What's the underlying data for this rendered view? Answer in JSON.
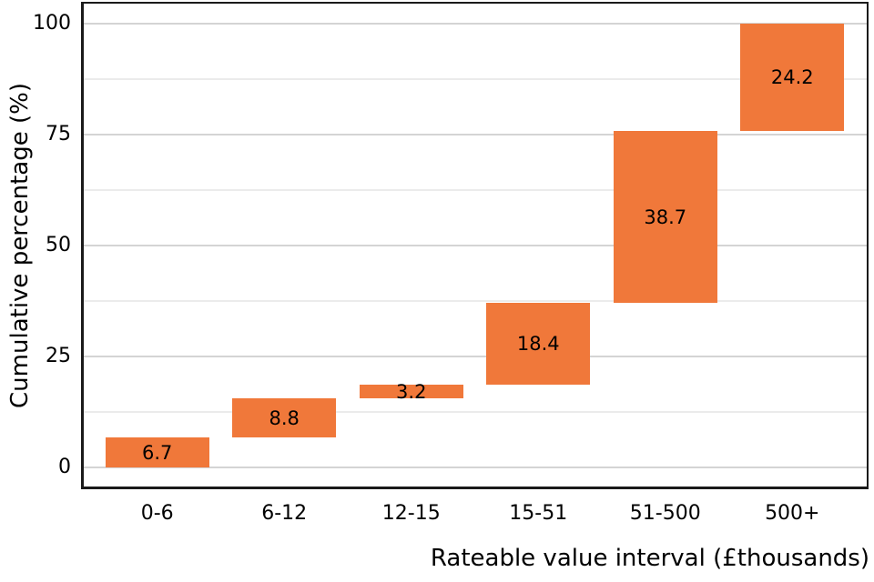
{
  "chart_data": {
    "type": "bar",
    "subtype": "waterfall",
    "title": "",
    "xlabel": "Rateable value interval (£thousands)",
    "ylabel": "Cumulative percentage (%)",
    "categories": [
      "0-6",
      "6-12",
      "12-15",
      "15-51",
      "51-500",
      "500+"
    ],
    "values": [
      6.7,
      8.8,
      3.2,
      18.4,
      38.7,
      24.2
    ],
    "bar_labels": [
      "6.7",
      "8.8",
      "3.2",
      "18.4",
      "38.7",
      "24.2"
    ],
    "cumulative_end": [
      6.7,
      15.5,
      18.7,
      37.1,
      75.8,
      100
    ],
    "ylim": [
      0,
      100
    ],
    "yticks": [
      0,
      25,
      50,
      75,
      100
    ],
    "ytick_labels": [
      "0",
      "25",
      "50",
      "75",
      "100"
    ],
    "yticks_minor": [
      12.5,
      37.5,
      62.5,
      87.5
    ],
    "grid": "horizontal major+minor, no vertical gridlines, no tick marks",
    "legend": "none",
    "colors": {
      "bar_fill": "#f0783a",
      "grid_major": "#d4d4d4",
      "grid_minor": "#ebebeb",
      "panel_border": "#1a1a1a",
      "text": "#000000",
      "background": "#ffffff"
    }
  }
}
